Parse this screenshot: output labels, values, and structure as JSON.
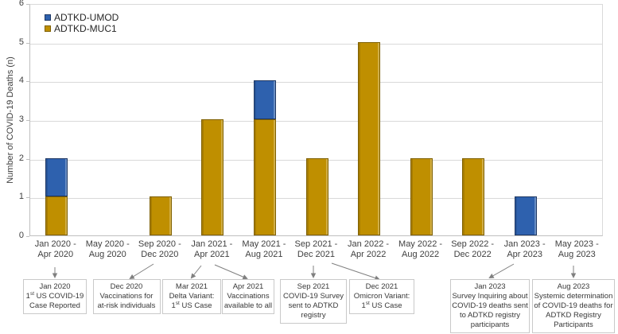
{
  "figure": {
    "background": "#ffffff",
    "axis_color": "#bfbfbf",
    "gridline_color": "#d9d9d9",
    "text_color": "#404040",
    "arrow_color": "#808080",
    "box_border_color": "#c9c9c9",
    "box_text_color": "#383838"
  },
  "chart_data": {
    "type": "bar",
    "stacked": true,
    "title": "",
    "xlabel": "",
    "ylabel": "Number of COVID-19 Deaths (n)",
    "ylim": [
      0,
      6
    ],
    "yticks": [
      0,
      1,
      2,
      3,
      4,
      5,
      6
    ],
    "grid": true,
    "legend_position": "top-left",
    "categories": [
      "Jan 2020 - Apr 2020",
      "May 2020 - Aug 2020",
      "Sep 2020 - Dec 2020",
      "Jan 2021 - Apr 2021",
      "May 2021 - Aug 2021",
      "Sep 2021 - Dec 2021",
      "Jan 2022 - Apr 2022",
      "May 2022 - Aug 2022",
      "Sep 2022 - Dec 2022",
      "Jan 2023 - Apr 2023",
      "May 2023 - Aug 2023"
    ],
    "series": [
      {
        "name": "ADTKD-UMOD",
        "color": "#2e61ae",
        "border_color": "#1f3864",
        "values": [
          1,
          0,
          0,
          0,
          1,
          0,
          0,
          0,
          0,
          1,
          0
        ]
      },
      {
        "name": "ADTKD-MUC1",
        "color": "#bf8f00",
        "border_color": "#7f6000",
        "values": [
          1,
          0,
          1,
          3,
          3,
          2,
          5,
          2,
          2,
          0,
          0
        ]
      }
    ],
    "totals": [
      2,
      0,
      1,
      3,
      4,
      2,
      5,
      2,
      2,
      1,
      0
    ]
  },
  "annotations": [
    {
      "lines": [
        "Jan 2020",
        "1st US COVID-19",
        "Case Reported"
      ]
    },
    {
      "lines": [
        "Dec 2020",
        "Vaccinations for",
        "at-risk individuals"
      ]
    },
    {
      "lines": [
        "Mar 2021",
        "Delta Variant:",
        "1st US Case"
      ]
    },
    {
      "lines": [
        "Apr 2021",
        "Vaccinations",
        "available to all"
      ]
    },
    {
      "lines": [
        "Sep 2021",
        "COVID-19 Survey",
        "sent to ADTKD",
        "registry"
      ]
    },
    {
      "lines": [
        "Dec 2021",
        "Omicron Variant:",
        "1st US Case"
      ]
    },
    {
      "lines": [
        "Jan 2023",
        "Survey Inquiring about",
        "COVID-19 deaths sent",
        "to ADTKD registry",
        "participants"
      ]
    },
    {
      "lines": [
        "Aug 2023",
        "Systemic determination",
        "of COVID-19 deaths for",
        "ADTKD Registry",
        "Participants"
      ]
    }
  ]
}
